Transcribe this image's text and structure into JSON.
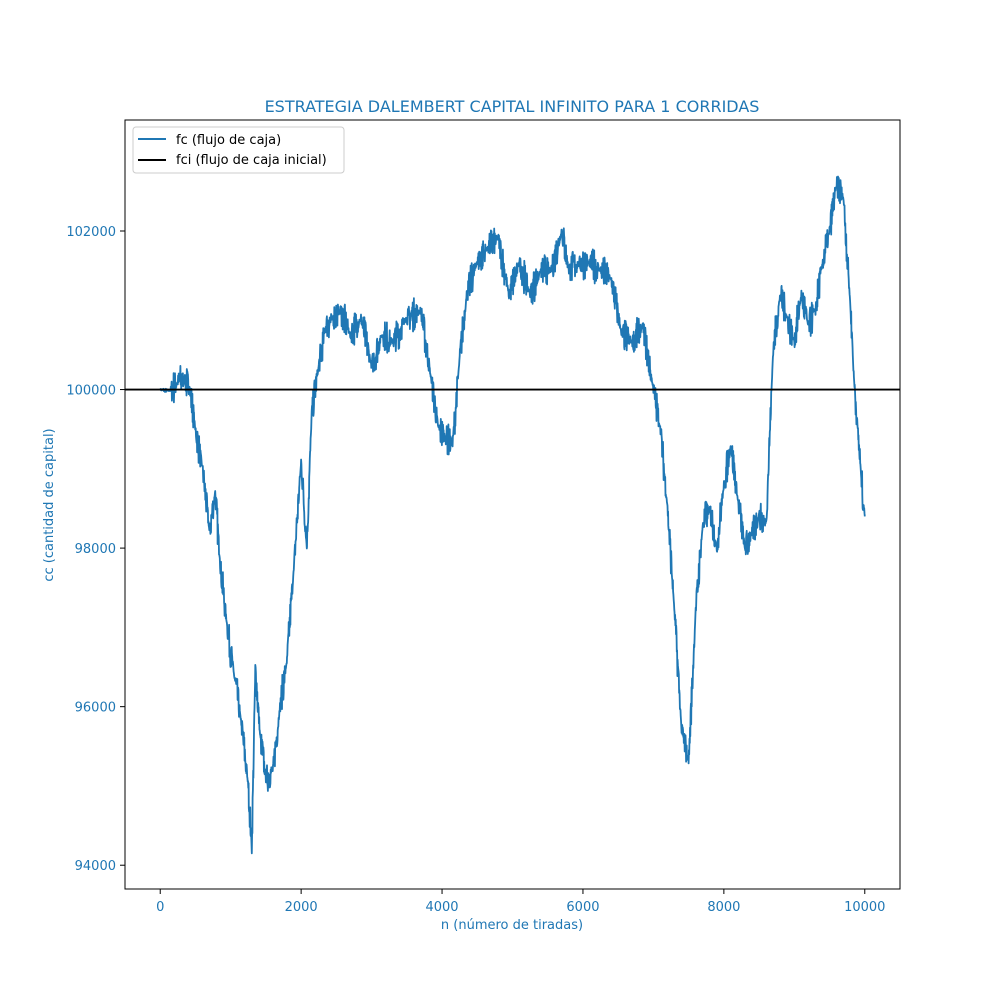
{
  "colors": {
    "accent": "#1f77b4",
    "reference": "#000000",
    "background": "#ffffff"
  },
  "chart_data": {
    "type": "line",
    "title": "ESTRATEGIA DALEMBERT CAPITAL INFINITO PARA 1 CORRIDAS",
    "xlabel": "n (número de tiradas)",
    "ylabel": "cc (cantidad de capital)",
    "xlim": [
      -500,
      10500
    ],
    "ylim": [
      93700,
      103400
    ],
    "xticks": [
      0,
      2000,
      4000,
      6000,
      8000,
      10000
    ],
    "yticks": [
      94000,
      96000,
      98000,
      100000,
      102000
    ],
    "grid": false,
    "legend_position": "upper left",
    "series": [
      {
        "name": "fc (flujo de caja)",
        "color": "#1f77b4",
        "x": [
          0,
          150,
          250,
          350,
          420,
          500,
          600,
          700,
          780,
          850,
          950,
          1050,
          1150,
          1250,
          1300,
          1350,
          1420,
          1500,
          1600,
          1700,
          1800,
          1900,
          2000,
          2080,
          2150,
          2250,
          2350,
          2450,
          2550,
          2700,
          2850,
          3000,
          3150,
          3300,
          3500,
          3700,
          3850,
          3950,
          4050,
          4150,
          4250,
          4350,
          4500,
          4650,
          4800,
          4950,
          5100,
          5250,
          5400,
          5550,
          5700,
          5800,
          5950,
          6100,
          6250,
          6400,
          6550,
          6700,
          6850,
          7000,
          7100,
          7200,
          7300,
          7400,
          7500,
          7600,
          7700,
          7800,
          7900,
          8000,
          8100,
          8200,
          8300,
          8400,
          8500,
          8600,
          8700,
          8800,
          8900,
          9000,
          9100,
          9200,
          9300,
          9400,
          9500,
          9600,
          9700,
          9800,
          9850,
          9900,
          9950,
          10000
        ],
        "y": [
          100000,
          99980,
          100100,
          100120,
          100000,
          99500,
          99000,
          98200,
          98700,
          97800,
          97000,
          96400,
          95800,
          95000,
          94200,
          96500,
          95600,
          95100,
          95200,
          96000,
          96600,
          97800,
          99100,
          98000,
          99700,
          100300,
          100800,
          100900,
          101000,
          100700,
          100900,
          100300,
          100700,
          100600,
          100900,
          101000,
          100100,
          99500,
          99400,
          99300,
          100400,
          101200,
          101600,
          101800,
          101900,
          101200,
          101600,
          101200,
          101500,
          101500,
          102000,
          101500,
          101600,
          101600,
          101500,
          101400,
          100700,
          100600,
          100800,
          100000,
          99500,
          98500,
          97200,
          95700,
          95300,
          97200,
          98300,
          98500,
          98000,
          98800,
          99300,
          98600,
          98000,
          98200,
          98400,
          98300,
          100500,
          101200,
          100900,
          100600,
          101200,
          100800,
          101000,
          101600,
          102000,
          102600,
          102400,
          101000,
          100100,
          99500,
          98900,
          98400
        ]
      },
      {
        "name": "fci (flujo de caja inicial)",
        "color": "#000000",
        "constant": 100000
      }
    ]
  }
}
